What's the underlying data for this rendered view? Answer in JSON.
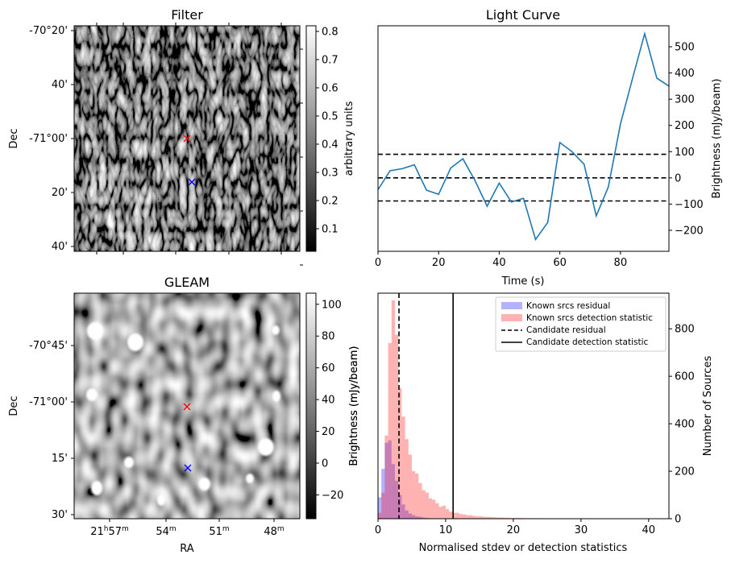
{
  "panels": {
    "filter": {
      "title": "Filter",
      "ylabel": "Dec",
      "yticks": [
        "-70°20'",
        "40'",
        "-71°00'",
        "20'",
        "40'"
      ],
      "colorbar": {
        "label": "arbitrary units",
        "min": 0.02,
        "max": 0.82,
        "ticks": [
          "0.1",
          "0.2",
          "0.3",
          "0.4",
          "0.5",
          "0.6",
          "0.7",
          "0.8"
        ]
      },
      "markers": [
        {
          "color": "#ff0000"
        },
        {
          "color": "#0000ff"
        }
      ]
    },
    "gleam": {
      "title": "GLEAM",
      "ylabel": "Dec",
      "xlabel": "RA",
      "yticks": [
        "-70°45'",
        "-71°00'",
        "15'",
        "30'"
      ],
      "xticks": [
        {
          "base": "21",
          "sup1": "h",
          "mid": "57",
          "sup2": "m"
        },
        {
          "base": "54",
          "sup1": "m"
        },
        {
          "base": "51",
          "sup1": "m"
        },
        {
          "base": "48",
          "sup1": "m"
        }
      ],
      "colorbar": {
        "label": "Brightness (mJy/beam)",
        "min": -35,
        "max": 107,
        "ticks": [
          "−20",
          "0",
          "20",
          "40",
          "60",
          "80",
          "100"
        ]
      },
      "markers": [
        {
          "color": "#ff0000"
        },
        {
          "color": "#0000ff"
        }
      ]
    }
  },
  "chart_data": [
    {
      "type": "line",
      "title": "Light Curve",
      "xlabel": "Time (s)",
      "ylabel": "Brightness (mJy/beam)",
      "xlim": [
        0,
        96
      ],
      "ylim": [
        -280,
        580
      ],
      "xticks": [
        "0",
        "20",
        "40",
        "60",
        "80"
      ],
      "yticks": [
        "−200",
        "−100",
        "0",
        "100",
        "200",
        "300",
        "400",
        "500"
      ],
      "x": [
        0,
        4,
        8,
        12,
        16,
        20,
        24,
        28,
        32,
        36,
        40,
        44,
        48,
        52,
        56,
        60,
        64,
        68,
        72,
        76,
        80,
        84,
        88,
        92,
        96
      ],
      "y": [
        -45,
        27,
        35,
        50,
        -47,
        -63,
        38,
        73,
        -10,
        -108,
        -20,
        -92,
        -78,
        -235,
        -170,
        135,
        100,
        52,
        -145,
        -35,
        205,
        380,
        550,
        380,
        350
      ],
      "hlines": [
        90,
        0,
        -88
      ],
      "color": "#1f77b4"
    },
    {
      "type": "histogram",
      "xlabel": "Normalised stdev or detection statistics",
      "ylabel": "Number of Sources",
      "left_axis_label": "Brightness (mJy/beam)",
      "xlim": [
        0,
        43
      ],
      "ylim": [
        0,
        950
      ],
      "xticks": [
        "0",
        "10",
        "20",
        "30",
        "40"
      ],
      "yticks": [
        "0",
        "200",
        "400",
        "600",
        "800"
      ],
      "bin_width": 0.5,
      "legend_position": "top-right",
      "series": [
        {
          "name": "Known srcs residual",
          "color": "#0000ff",
          "bins_start": 0,
          "values": [
            90,
            210,
            320,
            330,
            230,
            160,
            100,
            60,
            35,
            22,
            15,
            10,
            8,
            5,
            3,
            2,
            1,
            1,
            1
          ]
        },
        {
          "name": "Known srcs detection statistic",
          "color": "#ff0000",
          "bins_start": 0,
          "values": [
            25,
            110,
            350,
            740,
            920,
            775,
            550,
            430,
            335,
            270,
            200,
            190,
            150,
            120,
            110,
            85,
            80,
            65,
            50,
            55,
            40,
            30,
            25,
            25,
            20,
            18,
            15,
            15,
            12,
            10,
            10,
            8,
            8,
            7,
            6,
            5,
            5,
            4,
            4,
            3,
            3,
            3,
            3,
            2,
            2,
            2,
            2,
            2,
            1,
            1,
            1,
            1,
            1,
            1,
            1,
            1,
            1,
            1,
            1,
            1,
            1,
            1,
            1,
            1,
            1,
            1,
            1,
            1,
            1,
            1,
            1,
            0,
            0,
            0,
            1,
            0,
            0,
            0,
            1,
            0,
            0,
            0,
            1
          ]
        }
      ],
      "vlines": [
        {
          "name": "Candidate residual",
          "x": 3.1,
          "style": "dashed"
        },
        {
          "name": "Candidate detection statistic",
          "x": 11.1,
          "style": "solid"
        }
      ]
    }
  ]
}
